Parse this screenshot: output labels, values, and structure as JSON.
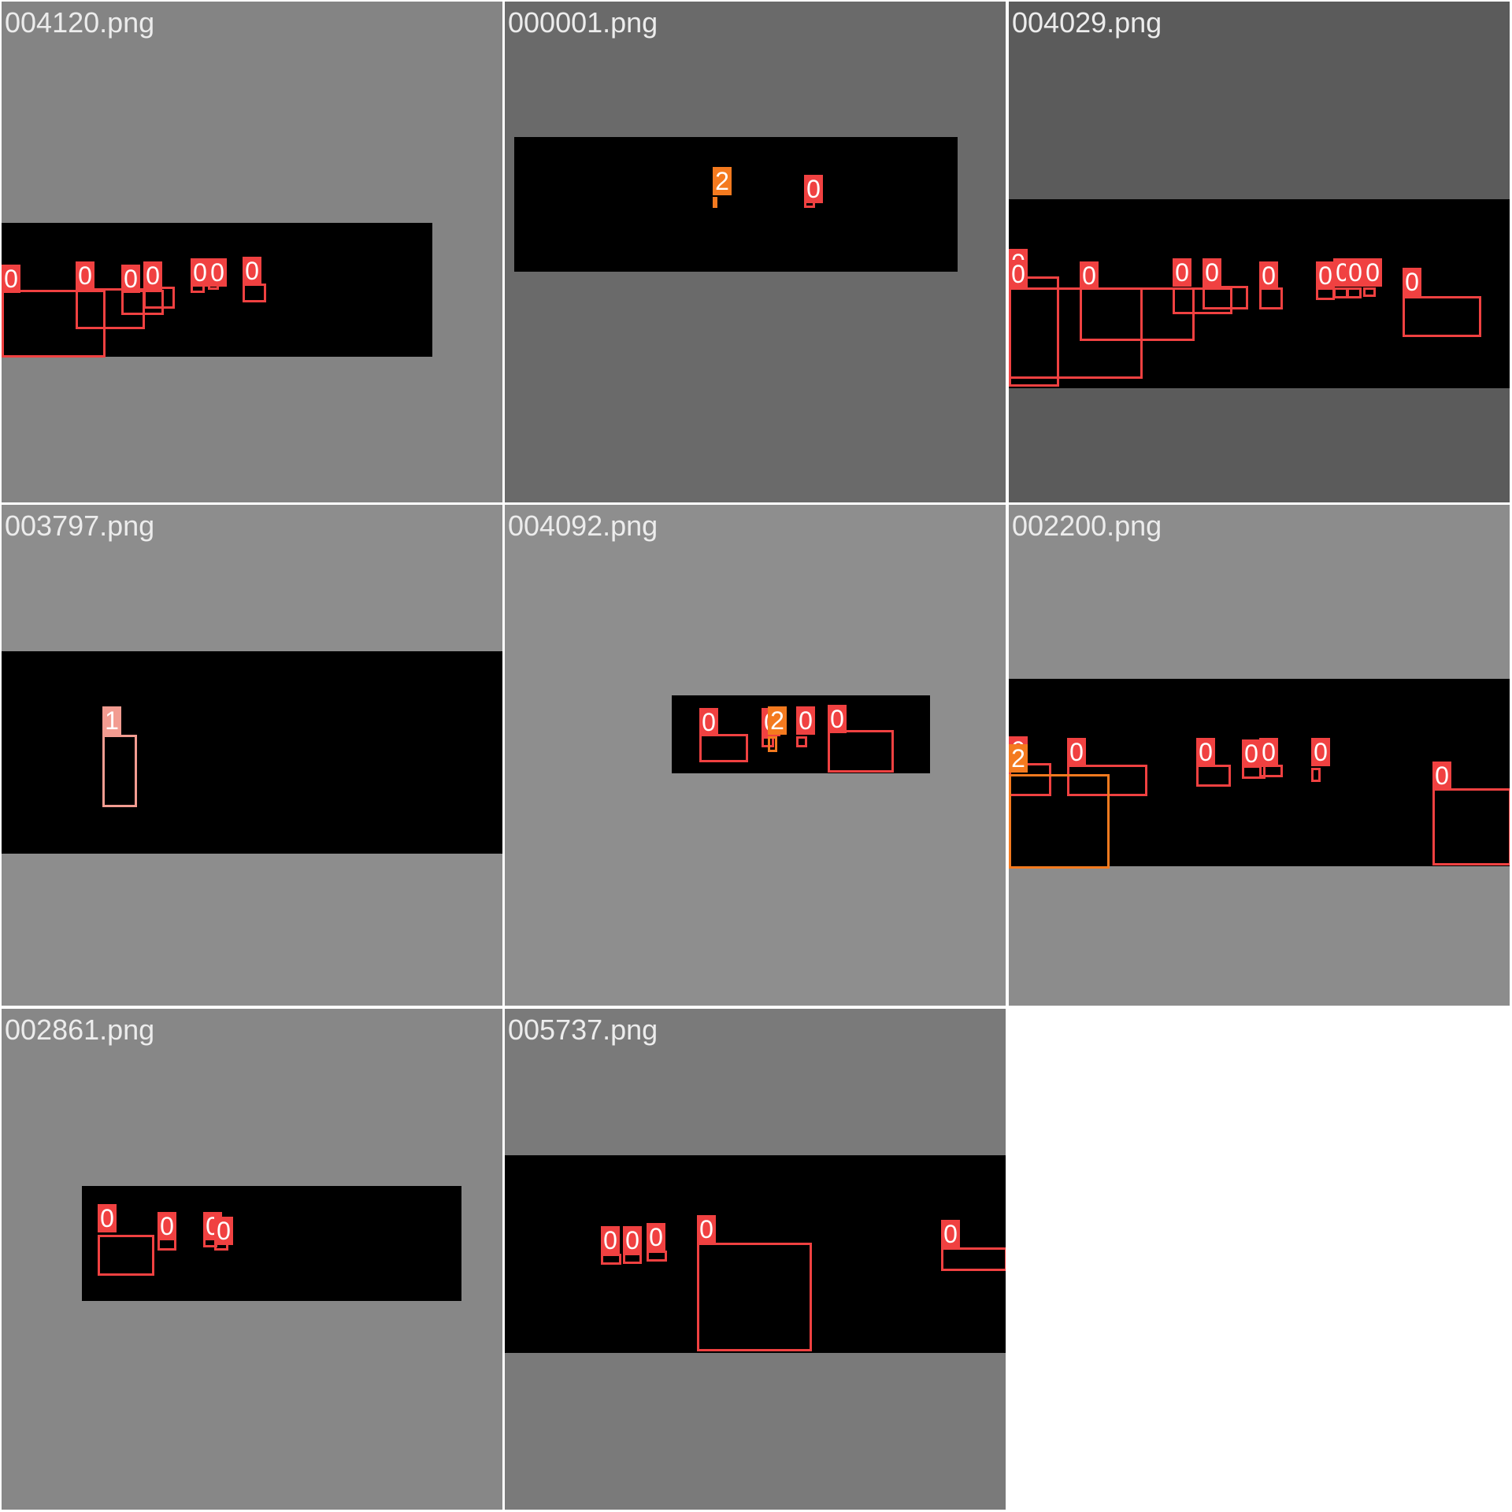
{
  "page_background": "#ffffff",
  "label_color": "#ececec",
  "band_color": "#000000",
  "class_colors": {
    "0": "#f04141",
    "1": "#f29c91",
    "2": "#f47a1f"
  },
  "tiles": [
    {
      "filename": "004120.png",
      "background": "#848484",
      "boxes": [
        {
          "cls": "0",
          "label": "0"
        },
        {
          "cls": "0",
          "label": "0"
        },
        {
          "cls": "0",
          "label": "0"
        },
        {
          "cls": "0",
          "label": "0"
        },
        {
          "cls": "0",
          "label": "0"
        },
        {
          "cls": "0",
          "label": "0"
        },
        {
          "cls": "0",
          "label": "0"
        }
      ]
    },
    {
      "filename": "000001.png",
      "background": "#6a6a6a",
      "boxes": [
        {
          "cls": "2",
          "label": "2"
        },
        {
          "cls": "0",
          "label": "0"
        }
      ]
    },
    {
      "filename": "004029.png",
      "background": "#5b5b5b",
      "boxes": [
        {
          "cls": "0",
          "label": "0"
        },
        {
          "cls": "0",
          "label": "0"
        },
        {
          "cls": "0",
          "label": "0"
        },
        {
          "cls": "0",
          "label": "0"
        },
        {
          "cls": "0",
          "label": "0"
        },
        {
          "cls": "0",
          "label": "0"
        },
        {
          "cls": "0",
          "label": "0"
        },
        {
          "cls": "0",
          "label": "0"
        },
        {
          "cls": "0",
          "label": "0"
        },
        {
          "cls": "0",
          "label": "0"
        },
        {
          "cls": "0",
          "label": "0"
        }
      ]
    },
    {
      "filename": "003797.png",
      "background": "#8d8d8d",
      "boxes": [
        {
          "cls": "1",
          "label": "1"
        }
      ]
    },
    {
      "filename": "004092.png",
      "background": "#8e8e8e",
      "boxes": [
        {
          "cls": "0",
          "label": "0"
        },
        {
          "cls": "0",
          "label": "0"
        },
        {
          "cls": "2",
          "label": "2"
        },
        {
          "cls": "0",
          "label": "0"
        },
        {
          "cls": "0",
          "label": "0"
        }
      ]
    },
    {
      "filename": "002200.png",
      "background": "#8c8c8c",
      "boxes": [
        {
          "cls": "0",
          "label": "0"
        },
        {
          "cls": "0",
          "label": "0"
        },
        {
          "cls": "0",
          "label": "0"
        },
        {
          "cls": "0",
          "label": "0"
        },
        {
          "cls": "0",
          "label": "0"
        },
        {
          "cls": "0",
          "label": "0"
        },
        {
          "cls": "2",
          "label": "2"
        },
        {
          "cls": "0",
          "label": "0"
        }
      ]
    },
    {
      "filename": "002861.png",
      "background": "#878787",
      "boxes": [
        {
          "cls": "0",
          "label": "0"
        },
        {
          "cls": "0",
          "label": "0"
        },
        {
          "cls": "0",
          "label": "0"
        },
        {
          "cls": "0",
          "label": "0"
        }
      ]
    },
    {
      "filename": "005737.png",
      "background": "#7a7a7a",
      "boxes": [
        {
          "cls": "0",
          "label": "0"
        },
        {
          "cls": "0",
          "label": "0"
        },
        {
          "cls": "0",
          "label": "0"
        },
        {
          "cls": "0",
          "label": "0"
        },
        {
          "cls": "0",
          "label": "0"
        }
      ]
    }
  ]
}
